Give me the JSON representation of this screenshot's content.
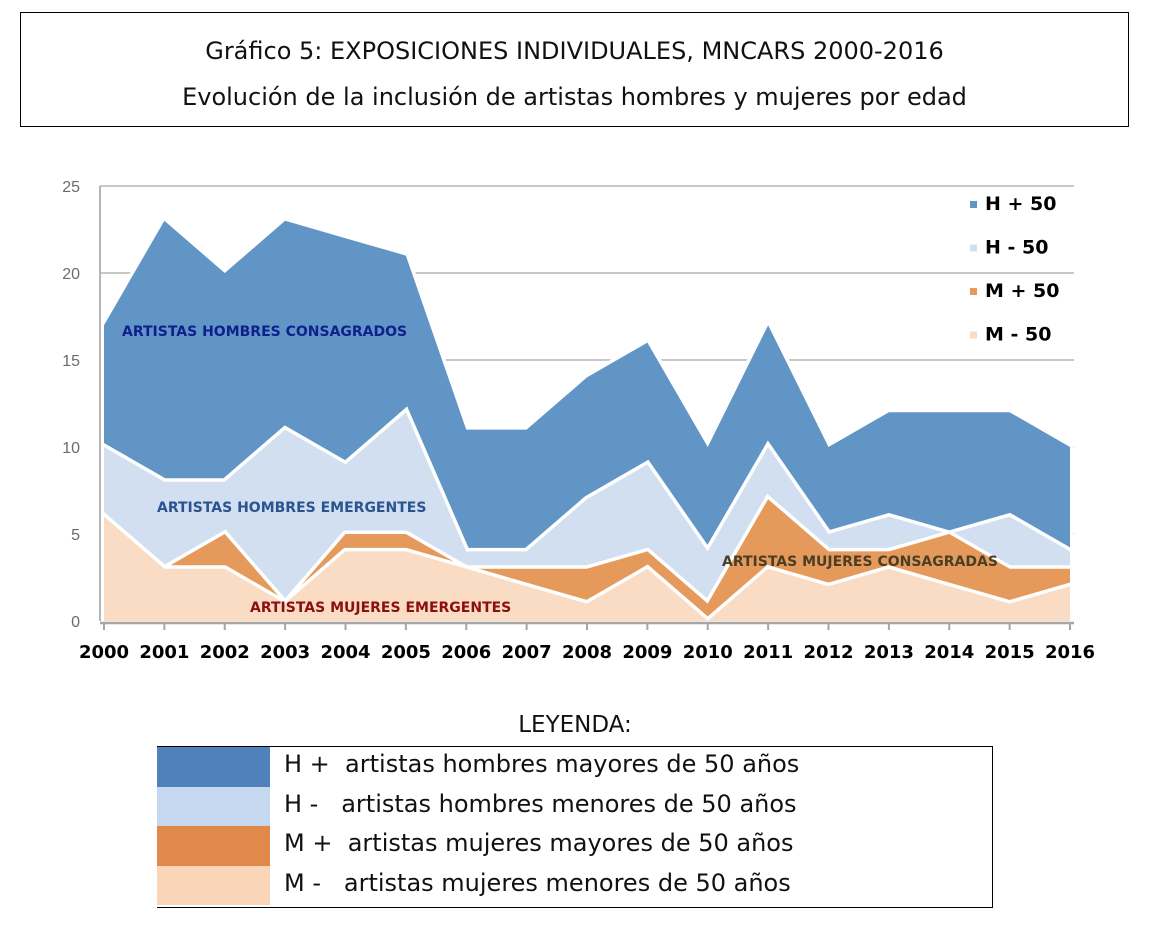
{
  "header": {
    "title": "Gráfico 5: EXPOSICIONES INDIVIDUALES, MNCARS 2000-2016",
    "subtitle": "Evolución de la inclusión de artistas hombres y mujeres por edad"
  },
  "chart_data": {
    "type": "area",
    "title": "Gráfico 5: EXPOSICIONES INDIVIDUALES, MNCARS 2000-2016",
    "subtitle": "Evolución de la inclusión de artistas hombres y mujeres por edad",
    "xlabel": "",
    "ylabel": "",
    "ylim": [
      0,
      25
    ],
    "yticks": [
      "0",
      "5",
      "10",
      "15",
      "20",
      "25"
    ],
    "ytick_values": [
      0,
      5,
      10,
      15,
      20,
      25
    ],
    "grid": true,
    "legend_position": "top-right",
    "categories": [
      "2000",
      "2001",
      "2002",
      "2003",
      "2004",
      "2005",
      "2006",
      "2007",
      "2008",
      "2009",
      "2010",
      "2011",
      "2012",
      "2013",
      "2014",
      "2015",
      "2016"
    ],
    "series": [
      {
        "name": "H + 50",
        "color": "#6195c6",
        "values": [
          17,
          23,
          20,
          23,
          22,
          21,
          11,
          11,
          14,
          16,
          10,
          17,
          10,
          12,
          12,
          12,
          10
        ]
      },
      {
        "name": "H - 50",
        "color": "#d1dff0",
        "values": [
          10,
          8,
          8,
          11,
          9,
          12,
          4,
          4,
          7,
          9,
          4,
          10,
          5,
          6,
          5,
          6,
          4
        ]
      },
      {
        "name": "M + 50",
        "color": "#e59a5c",
        "values": [
          6,
          3,
          5,
          1,
          5,
          5,
          3,
          3,
          3,
          4,
          1,
          7,
          4,
          4,
          5,
          3,
          3
        ]
      },
      {
        "name": "M - 50",
        "color": "#fadbc3",
        "values": [
          6,
          3,
          3,
          1,
          4,
          4,
          3,
          2,
          1,
          3,
          0,
          3,
          2,
          3,
          2,
          1,
          2
        ]
      }
    ],
    "annotations": [
      {
        "text": "ARTISTAS HOMBRES CONSAGRADOS",
        "color": "#0f1f8c"
      },
      {
        "text": "ARTISTAS HOMBRES EMERGENTES",
        "color": "#2a5390"
      },
      {
        "text": "ARTISTAS MUJERES CONSAGRADAS",
        "color": "#4a3f24"
      },
      {
        "text": "ARTISTAS MUJERES EMERGENTES",
        "color": "#8a0f12"
      }
    ]
  },
  "legend": {
    "title": "LEYENDA:",
    "items": [
      {
        "text": "H +  artistas hombres mayores de 50 años",
        "color": "#4f81bd"
      },
      {
        "text": "H -   artistas hombres menores de 50 años",
        "color": "#c6d8f0"
      },
      {
        "text": "M +  artistas mujeres mayores de 50 años",
        "color": "#e0894a"
      },
      {
        "text": "M -   artistas mujeres menores de 50 años",
        "color": "#fbd5b7"
      }
    ]
  }
}
